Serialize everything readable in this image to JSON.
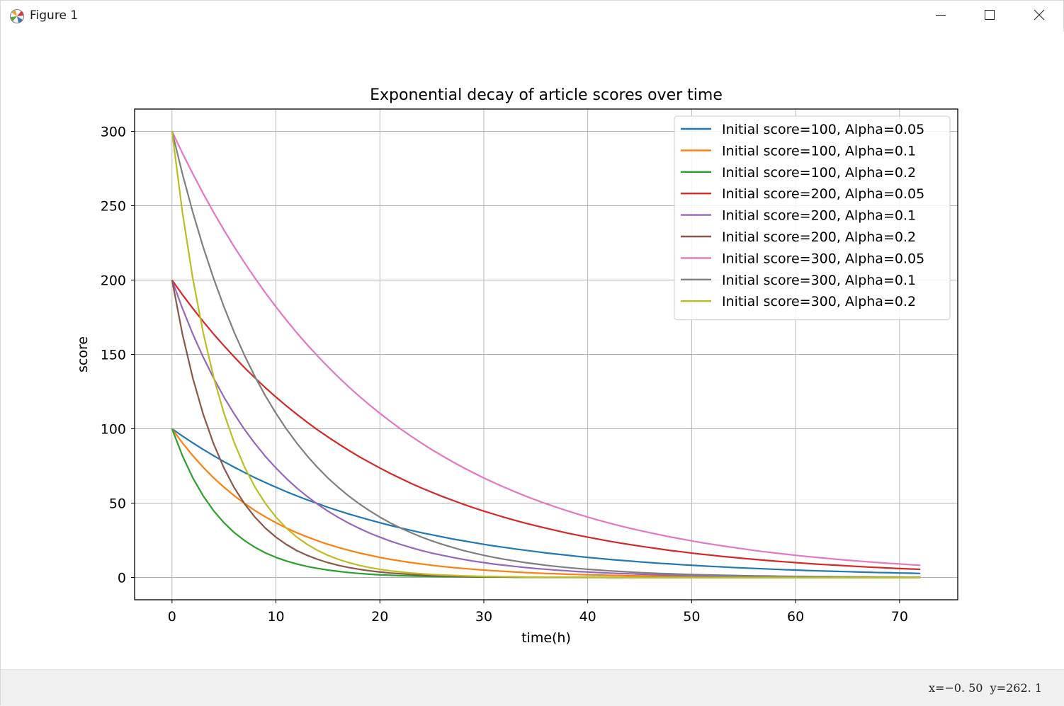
{
  "window": {
    "title": "Figure 1",
    "icon": "matplotlib-figure-icon",
    "controls": {
      "minimize": "minimize-icon",
      "maximize": "maximize-icon",
      "close": "close-icon"
    }
  },
  "statusbar": {
    "coords": "x=−0. 50  y=262. 1"
  },
  "colors": {
    "grid": "#b0b0b0",
    "axes": "#000000",
    "legend_border": "#cccccc"
  },
  "chart_data": {
    "type": "line",
    "title": "Exponential decay of article scores over time",
    "xlabel": "time(h)",
    "ylabel": "score",
    "xlim": [
      -3.6,
      75.6
    ],
    "ylim": [
      -15,
      315
    ],
    "xticks": [
      0,
      10,
      20,
      30,
      40,
      50,
      60,
      70
    ],
    "yticks": [
      0,
      50,
      100,
      150,
      200,
      250,
      300
    ],
    "grid": true,
    "legend_position": "upper right",
    "x": [
      0,
      1,
      2,
      3,
      4,
      5,
      6,
      7,
      8,
      9,
      10,
      11,
      12,
      13,
      14,
      15,
      16,
      17,
      18,
      19,
      20,
      21,
      22,
      23,
      24,
      25,
      26,
      27,
      28,
      29,
      30,
      31,
      32,
      33,
      34,
      35,
      36,
      37,
      38,
      39,
      40,
      41,
      42,
      43,
      44,
      45,
      46,
      47,
      48,
      49,
      50,
      51,
      52,
      53,
      54,
      55,
      56,
      57,
      58,
      59,
      60,
      61,
      62,
      63,
      64,
      65,
      66,
      67,
      68,
      69,
      70,
      71,
      72
    ],
    "series": [
      {
        "name": "Initial score=100, Alpha=0.05",
        "color": "#1f77b4",
        "values": [
          100,
          95.1,
          90.5,
          86.1,
          81.9,
          77.9,
          74.1,
          70.5,
          67.0,
          63.8,
          60.7,
          57.7,
          54.9,
          52.2,
          49.7,
          47.2,
          44.9,
          42.7,
          40.7,
          38.7,
          36.8,
          35.0,
          33.3,
          31.7,
          30.1,
          28.7,
          27.3,
          25.9,
          24.7,
          23.5,
          22.3,
          21.2,
          20.2,
          19.2,
          18.3,
          17.4,
          16.5,
          15.7,
          15.0,
          14.2,
          13.5,
          12.9,
          12.2,
          11.6,
          11.1,
          10.5,
          10.0,
          9.5,
          9.1,
          8.6,
          8.2,
          7.8,
          7.4,
          7.1,
          6.7,
          6.4,
          6.1,
          5.8,
          5.5,
          5.2,
          5.0,
          4.7,
          4.5,
          4.3,
          4.1,
          3.9,
          3.7,
          3.5,
          3.3,
          3.2,
          3.0,
          2.9,
          2.7
        ]
      },
      {
        "name": "Initial score=100, Alpha=0.1",
        "color": "#ff7f0e",
        "values": [
          100,
          90.5,
          81.9,
          74.1,
          67.0,
          60.7,
          54.9,
          49.7,
          44.9,
          40.7,
          36.8,
          33.3,
          30.1,
          27.3,
          24.7,
          22.3,
          20.2,
          18.3,
          16.5,
          15.0,
          13.5,
          12.2,
          11.1,
          10.0,
          9.1,
          8.2,
          7.4,
          6.7,
          6.1,
          5.5,
          5.0,
          4.5,
          4.1,
          3.7,
          3.3,
          3.0,
          2.7,
          2.5,
          2.2,
          2.0,
          1.8,
          1.7,
          1.5,
          1.4,
          1.2,
          1.1,
          1.0,
          0.9,
          0.8,
          0.7,
          0.7,
          0.6,
          0.6,
          0.5,
          0.5,
          0.4,
          0.4,
          0.3,
          0.3,
          0.3,
          0.2,
          0.2,
          0.2,
          0.2,
          0.2,
          0.2,
          0.1,
          0.1,
          0.1,
          0.1,
          0.1,
          0.1,
          0.1
        ]
      },
      {
        "name": "Initial score=100, Alpha=0.2",
        "color": "#2ca02c",
        "values": [
          100,
          81.9,
          67.0,
          54.9,
          44.9,
          36.8,
          30.1,
          24.7,
          20.2,
          16.5,
          13.5,
          11.1,
          9.1,
          7.4,
          6.1,
          5.0,
          4.1,
          3.3,
          2.7,
          2.2,
          1.8,
          1.5,
          1.2,
          1.0,
          0.8,
          0.7,
          0.6,
          0.5,
          0.4,
          0.3,
          0.2,
          0.2,
          0.2,
          0.1,
          0.1,
          0.1,
          0.1,
          0.1,
          0.1,
          0.0,
          0.0,
          0.0,
          0.0,
          0.0,
          0.0,
          0.0,
          0.0,
          0.0,
          0.0,
          0.0,
          0.0,
          0.0,
          0.0,
          0.0,
          0.0,
          0.0,
          0.0,
          0.0,
          0.0,
          0.0,
          0.0,
          0.0,
          0.0,
          0.0,
          0.0,
          0.0,
          0.0,
          0.0,
          0.0,
          0.0,
          0.0,
          0.0,
          0.0
        ]
      },
      {
        "name": "Initial score=200, Alpha=0.05",
        "color": "#d62728",
        "values": [
          200,
          190.2,
          181.0,
          172.1,
          163.7,
          155.8,
          148.2,
          140.9,
          134.1,
          127.5,
          121.3,
          115.4,
          109.8,
          104.4,
          99.3,
          94.5,
          89.9,
          85.5,
          81.3,
          77.4,
          73.6,
          70.0,
          66.6,
          63.3,
          60.2,
          57.3,
          54.5,
          51.9,
          49.3,
          46.9,
          44.6,
          42.5,
          40.4,
          38.4,
          36.5,
          34.8,
          33.1,
          31.5,
          29.9,
          28.5,
          27.1,
          25.8,
          24.5,
          23.3,
          22.2,
          21.1,
          20.1,
          19.1,
          18.1,
          17.3,
          16.4,
          15.6,
          14.9,
          14.1,
          13.5,
          12.8,
          12.2,
          11.6,
          11.0,
          10.5,
          10.0,
          9.5,
          9.0,
          8.6,
          8.2,
          7.8,
          7.4,
          7.0,
          6.7,
          6.3,
          6.0,
          5.7,
          5.5
        ]
      },
      {
        "name": "Initial score=200, Alpha=0.1",
        "color": "#9467bd",
        "values": [
          200,
          181.0,
          163.7,
          148.2,
          134.1,
          121.3,
          109.8,
          99.3,
          89.9,
          81.3,
          73.6,
          66.6,
          60.2,
          54.5,
          49.3,
          44.6,
          40.4,
          36.5,
          33.1,
          29.9,
          27.1,
          24.5,
          22.2,
          20.1,
          18.1,
          16.4,
          14.9,
          13.5,
          12.2,
          11.0,
          10.0,
          9.0,
          8.2,
          7.4,
          6.7,
          6.0,
          5.5,
          4.9,
          4.5,
          4.0,
          3.7,
          3.3,
          3.0,
          2.7,
          2.5,
          2.2,
          2.0,
          1.8,
          1.6,
          1.5,
          1.3,
          1.2,
          1.1,
          1.0,
          0.9,
          0.8,
          0.7,
          0.7,
          0.6,
          0.5,
          0.5,
          0.4,
          0.4,
          0.4,
          0.3,
          0.3,
          0.3,
          0.2,
          0.2,
          0.2,
          0.2,
          0.2,
          0.1
        ]
      },
      {
        "name": "Initial score=200, Alpha=0.2",
        "color": "#8c564b",
        "values": [
          200,
          163.7,
          134.1,
          109.8,
          89.9,
          73.6,
          60.2,
          49.3,
          40.4,
          33.1,
          27.1,
          22.2,
          18.1,
          14.9,
          12.2,
          10.0,
          8.2,
          6.7,
          5.5,
          4.5,
          3.7,
          3.0,
          2.5,
          2.0,
          1.6,
          1.3,
          1.1,
          0.9,
          0.7,
          0.6,
          0.5,
          0.4,
          0.3,
          0.3,
          0.2,
          0.2,
          0.1,
          0.1,
          0.1,
          0.1,
          0.1,
          0.1,
          0.0,
          0.0,
          0.0,
          0.0,
          0.0,
          0.0,
          0.0,
          0.0,
          0.0,
          0.0,
          0.0,
          0.0,
          0.0,
          0.0,
          0.0,
          0.0,
          0.0,
          0.0,
          0.0,
          0.0,
          0.0,
          0.0,
          0.0,
          0.0,
          0.0,
          0.0,
          0.0,
          0.0,
          0.0,
          0.0,
          0.0
        ]
      },
      {
        "name": "Initial score=300, Alpha=0.05",
        "color": "#e377c2",
        "values": [
          300,
          285.4,
          271.5,
          258.2,
          245.6,
          233.6,
          222.2,
          211.4,
          201.1,
          191.3,
          182.0,
          173.1,
          164.6,
          156.6,
          149.0,
          141.7,
          134.8,
          128.2,
          122.0,
          116.0,
          110.4,
          105.0,
          99.9,
          95.0,
          90.4,
          85.9,
          81.8,
          77.8,
          74.0,
          70.4,
          66.9,
          63.7,
          60.6,
          57.6,
          54.8,
          52.1,
          49.6,
          47.2,
          44.9,
          42.7,
          40.6,
          38.6,
          36.7,
          34.9,
          33.2,
          31.6,
          30.1,
          28.6,
          27.2,
          25.9,
          24.6,
          23.4,
          22.3,
          21.2,
          20.2,
          19.2,
          18.2,
          17.3,
          16.5,
          15.7,
          14.9,
          14.2,
          13.5,
          12.9,
          12.2,
          11.6,
          11.1,
          10.5,
          10.0,
          9.5,
          9.1,
          8.6,
          8.2
        ]
      },
      {
        "name": "Initial score=300, Alpha=0.1",
        "color": "#7f7f7f",
        "values": [
          300,
          271.5,
          245.6,
          222.2,
          201.1,
          182.0,
          164.6,
          149.0,
          134.8,
          122.0,
          110.4,
          99.9,
          90.4,
          81.8,
          74.0,
          66.9,
          60.6,
          54.8,
          49.6,
          44.9,
          40.6,
          36.7,
          33.2,
          30.1,
          27.2,
          24.6,
          22.3,
          20.2,
          18.2,
          16.5,
          14.9,
          13.5,
          12.2,
          11.1,
          10.0,
          9.1,
          8.2,
          7.4,
          6.7,
          6.1,
          5.5,
          5.0,
          4.5,
          4.1,
          3.7,
          3.3,
          3.0,
          2.7,
          2.5,
          2.2,
          2.0,
          1.8,
          1.7,
          1.5,
          1.4,
          1.2,
          1.1,
          1.0,
          0.9,
          0.8,
          0.7,
          0.7,
          0.6,
          0.6,
          0.5,
          0.5,
          0.4,
          0.4,
          0.3,
          0.3,
          0.3,
          0.2,
          0.2
        ]
      },
      {
        "name": "Initial score=300, Alpha=0.2",
        "color": "#bcbd22",
        "values": [
          300,
          245.6,
          201.1,
          164.6,
          134.8,
          110.4,
          90.4,
          74.0,
          60.6,
          49.6,
          40.6,
          33.2,
          27.2,
          22.3,
          18.2,
          14.9,
          12.2,
          10.0,
          8.2,
          6.7,
          5.5,
          4.5,
          3.7,
          3.0,
          2.5,
          2.0,
          1.7,
          1.4,
          1.1,
          0.9,
          0.7,
          0.6,
          0.5,
          0.4,
          0.3,
          0.3,
          0.2,
          0.2,
          0.2,
          0.1,
          0.1,
          0.1,
          0.1,
          0.1,
          0.0,
          0.0,
          0.0,
          0.0,
          0.0,
          0.0,
          0.0,
          0.0,
          0.0,
          0.0,
          0.0,
          0.0,
          0.0,
          0.0,
          0.0,
          0.0,
          0.0,
          0.0,
          0.0,
          0.0,
          0.0,
          0.0,
          0.0,
          0.0,
          0.0,
          0.0,
          0.0,
          0.0,
          0.0
        ]
      }
    ]
  }
}
